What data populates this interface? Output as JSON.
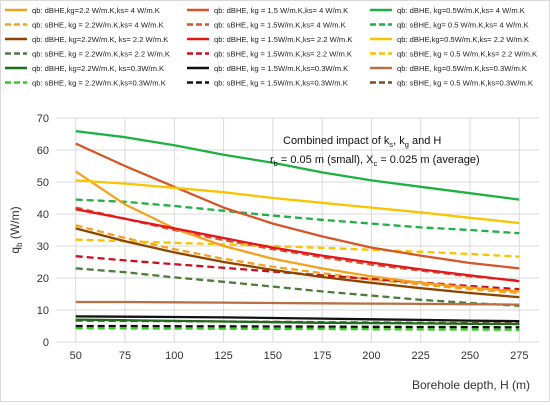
{
  "chart_data": {
    "type": "line",
    "xlabel": "Borehole depth, H (m)",
    "ylabel": "q",
    "ylabel_sub": "b",
    "ylabel_unit": " (W/m)",
    "xlim": [
      40,
      285
    ],
    "ylim": [
      0,
      70
    ],
    "xticks": [
      50,
      75,
      100,
      125,
      150,
      175,
      200,
      225,
      250,
      275
    ],
    "yticks": [
      0,
      10,
      20,
      30,
      40,
      50,
      60,
      70
    ],
    "grid": true,
    "legend_position": "top",
    "annotation": {
      "line1_parts": [
        "Combined impact of k",
        "s",
        ", k",
        "g",
        " and H"
      ],
      "line2_parts": [
        "r",
        "b",
        " = 0.05 m (small), X",
        "c",
        " = 0.025 m (average)"
      ]
    },
    "x": [
      50,
      75,
      100,
      125,
      150,
      175,
      200,
      225,
      250,
      275
    ],
    "series": [
      {
        "name": "qb: dBHE,kg=2.2 W/m.K,ks= 4 W/m.K",
        "color": "#F5A11C",
        "dash": "solid",
        "values": [
          53.3,
          43.0,
          35.5,
          30.0,
          26.0,
          23.0,
          20.5,
          18.5,
          17.0,
          15.8
        ]
      },
      {
        "name": "qb: dBHE, kg = 1.5 W/m.K,ks= 4 W/m.K",
        "color": "#D4562A",
        "dash": "solid",
        "values": [
          62.0,
          55.0,
          48.5,
          42.0,
          37.0,
          33.0,
          29.5,
          27.0,
          24.7,
          23.0
        ]
      },
      {
        "name": "qb: dBHE, kg=0.5W/m.K,ks= 4 W/m.K",
        "color": "#1DB043",
        "dash": "solid",
        "values": [
          65.9,
          64.0,
          61.5,
          58.5,
          56.0,
          53.0,
          50.5,
          48.5,
          46.5,
          44.5
        ]
      },
      {
        "name": "qb: sBHE, kg = 2.2W/m.K,ks= 4 W/m.K",
        "color": "#F5A11C",
        "dash": "dash",
        "values": [
          36.5,
          32.5,
          29.0,
          26.0,
          23.5,
          21.5,
          19.5,
          18.0,
          16.5,
          15.3
        ]
      },
      {
        "name": "qb: sBHE, kg = 1.5W/m.K,ks= 4 W/m.K",
        "color": "#D4562A",
        "dash": "dash",
        "values": [
          42.0,
          38.5,
          35.0,
          31.8,
          29.0,
          26.5,
          24.2,
          22.3,
          20.5,
          19.2
        ]
      },
      {
        "name": "qb: sBHE, kg= 0.5 W/m.K,ks= 4 W/m.K",
        "color": "#1DB043",
        "dash": "dash",
        "values": [
          44.5,
          43.8,
          42.5,
          41.0,
          39.5,
          38.2,
          37.0,
          35.8,
          35.0,
          34.0
        ]
      },
      {
        "name": "qb: dBHE, kg=2.2W/m.K, ks= 2.2 W/m.K",
        "color": "#8B4500",
        "dash": "solid",
        "values": [
          35.5,
          31.5,
          28.0,
          25.0,
          22.5,
          20.3,
          18.5,
          16.8,
          15.3,
          14.0
        ]
      },
      {
        "name": "qb: dBHE, kg = 1.5W/m.K,ks= 2.2 W/m.K",
        "color": "#E8141C",
        "dash": "solid",
        "values": [
          41.5,
          38.5,
          35.5,
          32.5,
          29.5,
          27.0,
          24.8,
          22.7,
          20.8,
          19.0
        ]
      },
      {
        "name": "qb: dBHE,kg=0.5W/m.K,ks= 2.2 W/m.K",
        "color": "#F8C400",
        "dash": "solid",
        "values": [
          50.5,
          49.5,
          48.2,
          46.8,
          45.0,
          43.5,
          42.0,
          40.5,
          38.8,
          37.2
        ]
      },
      {
        "name": "qb: sBHE, kg = 2.2W/m.K,ks= 2.2 W/m.K",
        "color": "#4E7A3A",
        "dash": "dash",
        "values": [
          23.0,
          21.8,
          20.2,
          18.8,
          17.3,
          15.8,
          14.5,
          13.2,
          12.2,
          11.3
        ]
      },
      {
        "name": "qb: sBHE, kg = 1.5W/m.K,ks= 2.2 W/m.K",
        "color": "#C8101E",
        "dash": "dash",
        "values": [
          26.8,
          25.5,
          24.3,
          23.2,
          22.0,
          20.8,
          19.7,
          18.6,
          17.5,
          16.5
        ]
      },
      {
        "name": "qb: sBHE, kg = 0.5 W/m.K,ks= 2.2 W/m.K",
        "color": "#F8C400",
        "dash": "dash",
        "values": [
          32.0,
          31.5,
          31.0,
          30.5,
          30.0,
          29.4,
          28.8,
          28.2,
          27.5,
          26.7
        ]
      },
      {
        "name": "qb: dBHE, kg=2.2W/m.K, ks=0.3W/m.K",
        "color": "#1E6E1E",
        "dash": "solid",
        "values": [
          7.0,
          6.8,
          6.6,
          6.4,
          6.2,
          6.0,
          5.9,
          5.8,
          5.7,
          5.6
        ]
      },
      {
        "name": "qb: dBHE, kg = 1.5W/m.K,ks=0.3W/m.K",
        "color": "#111111",
        "dash": "solid",
        "values": [
          8.0,
          7.9,
          7.8,
          7.7,
          7.5,
          7.3,
          7.1,
          6.9,
          6.7,
          6.5
        ]
      },
      {
        "name": "qb: dBHE, kg=0.5W/m.K,ks=0.3W/m.K",
        "color": "#B87042",
        "dash": "solid",
        "values": [
          12.5,
          12.5,
          12.4,
          12.3,
          12.2,
          12.1,
          12.0,
          11.9,
          11.8,
          11.7
        ]
      },
      {
        "name": "qb: sBHE, kg = 2.2W/m.K,ks=0.3W/m.K",
        "color": "#33CC22",
        "dash": "dash",
        "values": [
          4.3,
          4.25,
          4.2,
          4.15,
          4.1,
          4.05,
          4.0,
          3.95,
          3.9,
          3.8
        ]
      },
      {
        "name": "qb: sBHE, kg = 1.5W/m.K,ks=0.3W/m.K",
        "color": "#111111",
        "dash": "dash",
        "values": [
          5.0,
          5.0,
          4.95,
          4.9,
          4.85,
          4.8,
          4.75,
          4.7,
          4.65,
          4.6
        ]
      },
      {
        "name": "qb: sBHE, kg = 0.5 W/m.K,ks=0.3W/m.K",
        "color": "#7A4A2A",
        "dash": "dash",
        "values": [
          6.7,
          6.6,
          6.5,
          6.4,
          6.3,
          6.2,
          6.1,
          6.0,
          5.9,
          5.8
        ]
      }
    ]
  }
}
